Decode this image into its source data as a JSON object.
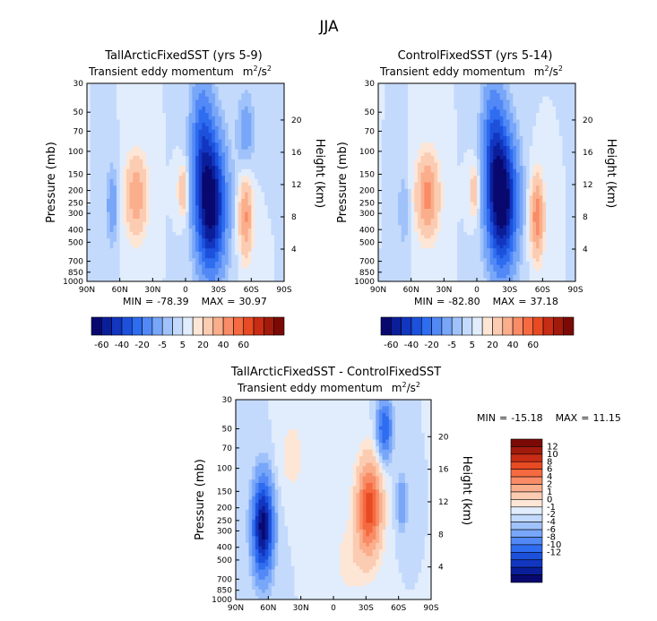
{
  "figure_title": "JJA",
  "unit_base": "m",
  "unit_exp": "2",
  "unit_div": "/s",
  "unit_exp2": "2",
  "pressure_axis": {
    "label": "Pressure (mb)",
    "ticks": [
      30,
      50,
      70,
      100,
      150,
      200,
      250,
      300,
      400,
      500,
      700,
      850,
      1000
    ],
    "range": [
      30,
      1000
    ]
  },
  "height_axis": {
    "label": "Height (km)",
    "ticks": [
      4,
      8,
      12,
      16,
      20
    ]
  },
  "lat_axis": {
    "ticks": [
      "90N",
      "60N",
      "30N",
      "0",
      "30S",
      "60S",
      "90S"
    ],
    "range": [
      90,
      -90
    ]
  },
  "colors": {
    "blue": [
      "#08086f",
      "#0b1e9a",
      "#1236c0",
      "#1d51dc",
      "#2e6cf0",
      "#5289f6",
      "#78a6f8",
      "#a0c2fa",
      "#c4dafc",
      "#e1edfd"
    ],
    "red": [
      "#fde6d6",
      "#fbccb2",
      "#fbae8c",
      "#f98c66",
      "#f56a40",
      "#e84a24",
      "#c72c14",
      "#a11a0c",
      "#7b0a06"
    ]
  },
  "chart_data": [
    {
      "type": "contour",
      "id": "tall",
      "title": "TallArcticFixedSST (yrs 5-9)",
      "subtitle": "Transient eddy momentum",
      "stats": {
        "min_label": "MIN",
        "min": "-78.39",
        "max_label": "MAX",
        "max": "30.97"
      },
      "levels": [
        -70,
        -60,
        -50,
        -40,
        -30,
        -20,
        -10,
        -5,
        0,
        5,
        10,
        20,
        30,
        40,
        50,
        60,
        70
      ],
      "colorbar_labels": [
        "-60",
        "-40",
        "-20",
        "-5",
        "5",
        "20",
        "40",
        "60"
      ],
      "features": [
        {
          "lat": -23,
          "p": 260,
          "value": -78.4,
          "lat_halfwidth": 13,
          "logp_halfwidth": 0.5
        },
        {
          "lat": -15,
          "p": 80,
          "value": -30,
          "lat_halfwidth": 10,
          "logp_halfwidth": 0.5
        },
        {
          "lat": -55,
          "p": 70,
          "value": -15,
          "lat_halfwidth": 8,
          "logp_halfwidth": 0.3
        },
        {
          "lat": 45,
          "p": 220,
          "value": 28,
          "lat_halfwidth": 10,
          "logp_halfwidth": 0.3
        },
        {
          "lat": -55,
          "p": 320,
          "value": 31,
          "lat_halfwidth": 6,
          "logp_halfwidth": 0.3
        },
        {
          "lat": 2,
          "p": 200,
          "value": 20,
          "lat_halfwidth": 5,
          "logp_halfwidth": 0.2
        },
        {
          "lat": 67,
          "p": 260,
          "value": -17,
          "lat_halfwidth": 5,
          "logp_halfwidth": 0.3
        }
      ]
    },
    {
      "type": "contour",
      "id": "control",
      "title": "ControlFixedSST (yrs 5-14)",
      "subtitle": "Transient eddy momentum",
      "stats": {
        "min_label": "MIN",
        "min": "-82.80",
        "max_label": "MAX",
        "max": "37.18"
      },
      "levels": [
        -70,
        -60,
        -50,
        -40,
        -30,
        -20,
        -10,
        -5,
        0,
        5,
        10,
        20,
        30,
        40,
        50,
        60,
        70
      ],
      "colorbar_labels": [
        "-60",
        "-40",
        "-20",
        "-5",
        "5",
        "20",
        "40",
        "60"
      ],
      "features": [
        {
          "lat": -23,
          "p": 240,
          "value": -82.8,
          "lat_halfwidth": 13,
          "logp_halfwidth": 0.5
        },
        {
          "lat": -15,
          "p": 80,
          "value": -30,
          "lat_halfwidth": 10,
          "logp_halfwidth": 0.5
        },
        {
          "lat": 45,
          "p": 220,
          "value": 35,
          "lat_halfwidth": 10,
          "logp_halfwidth": 0.3
        },
        {
          "lat": -55,
          "p": 320,
          "value": 37,
          "lat_halfwidth": 6,
          "logp_halfwidth": 0.3
        },
        {
          "lat": 2,
          "p": 200,
          "value": 18,
          "lat_halfwidth": 5,
          "logp_halfwidth": 0.2
        },
        {
          "lat": 67,
          "p": 280,
          "value": -10,
          "lat_halfwidth": 5,
          "logp_halfwidth": 0.3
        }
      ]
    },
    {
      "type": "contour",
      "id": "diff",
      "title": "TallArcticFixedSST - ControlFixedSST",
      "subtitle": "Transient eddy momentum",
      "stats": {
        "min_label": "MIN",
        "min": "-15.18",
        "max_label": "MAX",
        "max": "11.15"
      },
      "levels": [
        -14,
        -12,
        -10,
        -8,
        -6,
        -4,
        -2,
        -1,
        0,
        1,
        2,
        4,
        6,
        8,
        10,
        12,
        14
      ],
      "colorbar_labels": [
        "12",
        "10",
        "8",
        "6",
        "4",
        "2",
        "1",
        "0",
        "-1",
        "-2",
        "-4",
        "-6",
        "-8",
        "-10",
        "-12"
      ],
      "features": [
        {
          "lat": 65,
          "p": 280,
          "value": -15.2,
          "lat_halfwidth": 9,
          "logp_halfwidth": 0.35
        },
        {
          "lat": -33,
          "p": 200,
          "value": 11.1,
          "lat_halfwidth": 11,
          "logp_halfwidth": 0.35
        },
        {
          "lat": -47,
          "p": 50,
          "value": -8,
          "lat_halfwidth": 7,
          "logp_halfwidth": 0.22
        },
        {
          "lat": -63,
          "p": 180,
          "value": -4,
          "lat_halfwidth": 5,
          "logp_halfwidth": 0.2
        },
        {
          "lat": 38,
          "p": 80,
          "value": 1.6,
          "lat_halfwidth": 12,
          "logp_halfwidth": 0.3
        },
        {
          "lat": -15,
          "p": 500,
          "value": 1.5,
          "lat_halfwidth": 15,
          "logp_halfwidth": 0.3
        }
      ]
    }
  ]
}
